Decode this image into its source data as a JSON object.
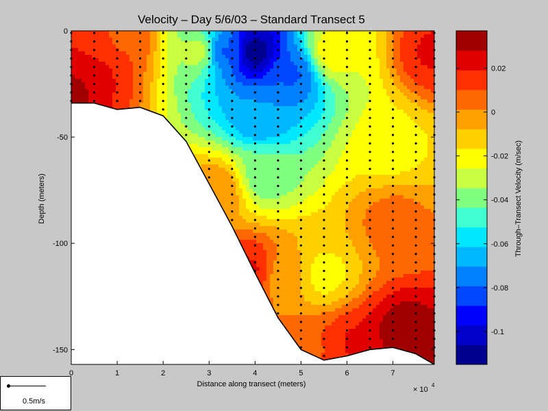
{
  "chart_data": {
    "type": "heatmap",
    "title": "Velocity – Day 5/6/03 – Standard Transect 5",
    "xlabel": "Distance along transect (meters)",
    "ylabel": "Depth (meters)",
    "x_exponent_label": "× 10",
    "x_exponent_power": "4",
    "xlim": [
      0,
      7.9
    ],
    "ylim": [
      -157,
      0
    ],
    "x_ticks": [
      "0",
      "1",
      "2",
      "3",
      "4",
      "5",
      "6",
      "7"
    ],
    "y_ticks": [
      "0",
      "-50",
      "-100",
      "-150"
    ],
    "colorbar": {
      "label": "Through–Transect Velocity (m/sec)",
      "range": [
        -0.115,
        0.037
      ],
      "ticks": [
        "0.02",
        "0",
        "-0.02",
        "-0.04",
        "-0.06",
        "-0.08",
        "-0.1"
      ],
      "colors": [
        "#000090",
        "#0000c8",
        "#0000ff",
        "#0048ff",
        "#0080ff",
        "#00b8ff",
        "#00e8ff",
        "#40ffd0",
        "#80ff80",
        "#c8ff40",
        "#ffff00",
        "#ffd000",
        "#ffa000",
        "#ff6800",
        "#ff3000",
        "#e00000",
        "#a00000"
      ]
    },
    "bathymetry": {
      "x": [
        0,
        0.5,
        1,
        1.5,
        2,
        2.5,
        3,
        3.5,
        4,
        4.5,
        5,
        5.5,
        6,
        6.5,
        7,
        7.5,
        7.9
      ],
      "depth": [
        -34,
        -34,
        -37,
        -36,
        -40,
        -52,
        -72,
        -92,
        -114,
        -135,
        -150,
        -155,
        -153,
        -150,
        -149,
        -152,
        -157
      ]
    },
    "profile_x": [
      0,
      0.5,
      1,
      1.5,
      2,
      2.5,
      3,
      3.5,
      4,
      4.5,
      5,
      5.5,
      6,
      6.5,
      7,
      7.5,
      7.9
    ],
    "velocity_features": [
      {
        "x": 4.0,
        "depth": -10,
        "value": -0.11
      },
      {
        "x": 3.3,
        "depth": -10,
        "value": -0.08
      },
      {
        "x": 4.8,
        "depth": -20,
        "value": -0.08
      },
      {
        "x": 4.1,
        "depth": -40,
        "value": -0.07
      },
      {
        "x": 4.2,
        "depth": -68,
        "value": -0.04
      },
      {
        "x": 2.8,
        "depth": -10,
        "value": -0.03
      },
      {
        "x": 5.7,
        "depth": -10,
        "value": -0.02
      },
      {
        "x": 0.1,
        "depth": -28,
        "value": 0.03
      },
      {
        "x": 0.6,
        "depth": -20,
        "value": 0.02
      },
      {
        "x": 1.1,
        "depth": -5,
        "value": 0.01
      },
      {
        "x": 7.9,
        "depth": -10,
        "value": 0.02
      },
      {
        "x": 7.2,
        "depth": -143,
        "value": 0.035
      },
      {
        "x": 6.2,
        "depth": -147,
        "value": 0.02
      },
      {
        "x": 5.3,
        "depth": -150,
        "value": 0.01
      },
      {
        "x": 4.7,
        "depth": -115,
        "value": -0.005
      },
      {
        "x": 3.9,
        "depth": -112,
        "value": 0.02
      },
      {
        "x": 3.2,
        "depth": -75,
        "value": 0.0
      },
      {
        "x": 5.5,
        "depth": -115,
        "value": -0.02
      },
      {
        "x": 7.0,
        "depth": -90,
        "value": 0.005
      },
      {
        "x": 6.9,
        "depth": -55,
        "value": -0.02
      }
    ]
  },
  "scale_legend": {
    "label": "0.5m/s"
  }
}
